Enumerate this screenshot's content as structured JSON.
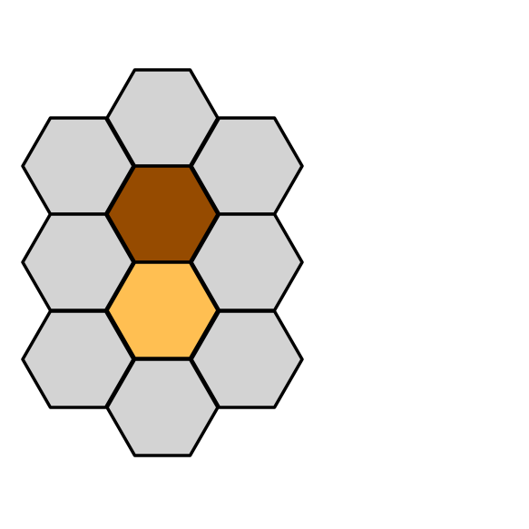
{
  "board": {
    "colors": {
      "empty": "#d3d3d3",
      "outline": "#000000",
      "dark_brown": "#964b00",
      "light_orange": "#ffbf52"
    },
    "cells": [
      {
        "id": "hex-top",
        "state": "empty",
        "fill": "#d3d3d3"
      },
      {
        "id": "hex-upper-left",
        "state": "empty",
        "fill": "#d3d3d3"
      },
      {
        "id": "hex-upper-right",
        "state": "empty",
        "fill": "#d3d3d3"
      },
      {
        "id": "hex-upper-center",
        "state": "dark-brown",
        "fill": "#964b00"
      },
      {
        "id": "hex-middle-left",
        "state": "empty",
        "fill": "#d3d3d3"
      },
      {
        "id": "hex-middle-right",
        "state": "empty",
        "fill": "#d3d3d3"
      },
      {
        "id": "hex-lower-center",
        "state": "light-orange",
        "fill": "#ffbf52"
      },
      {
        "id": "hex-lower-left",
        "state": "empty",
        "fill": "#d3d3d3"
      },
      {
        "id": "hex-lower-right",
        "state": "empty",
        "fill": "#d3d3d3"
      },
      {
        "id": "hex-bottom",
        "state": "empty",
        "fill": "#d3d3d3"
      }
    ]
  }
}
